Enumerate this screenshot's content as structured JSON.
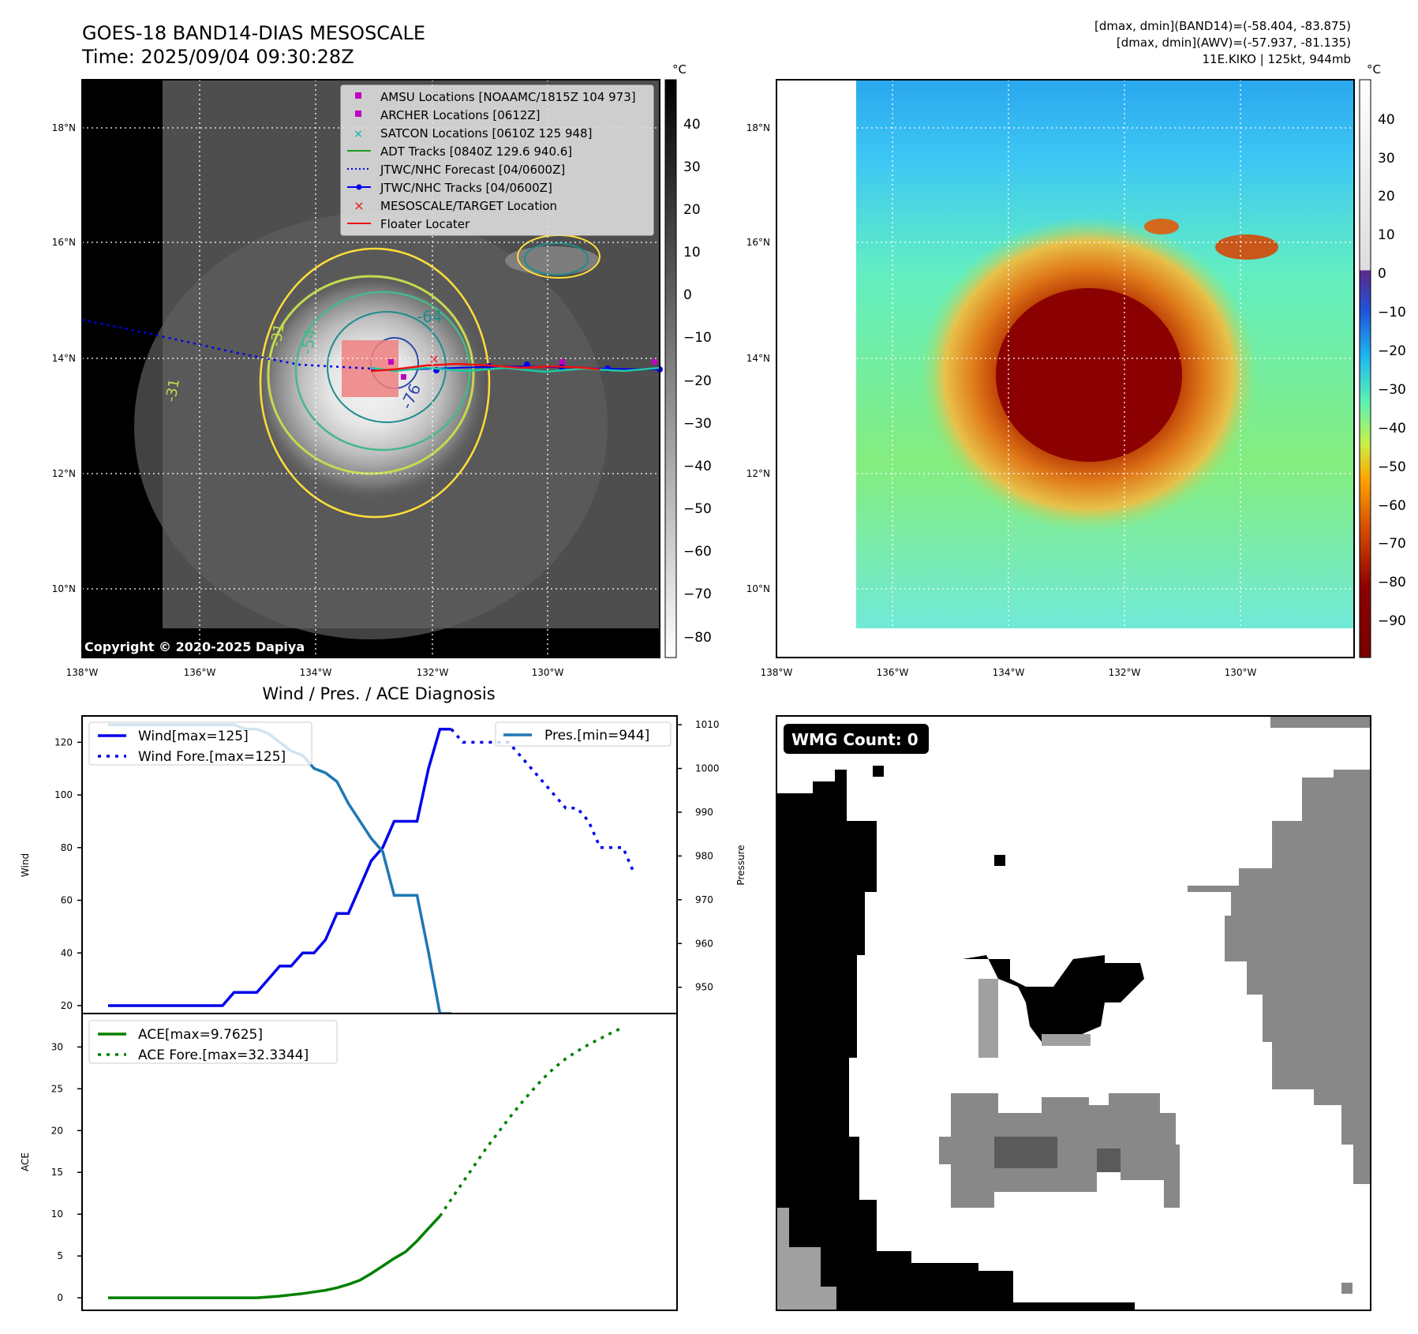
{
  "header": {
    "title": "GOES-18 BAND14-DIAS MESOSCALE",
    "time": "Time: 2025/09/04 09:30:28Z",
    "stats1": "[dmax, dmin](BAND14)=(-58.404, -83.875)",
    "stats2": "[dmax, dmin](AWV)=(-57.937, -81.135)",
    "storm": "11E.KIKO | 125kt, 944mb"
  },
  "map": {
    "lon_labels": [
      "138°W",
      "136°W",
      "134°W",
      "132°W",
      "130°W"
    ],
    "lat_labels": [
      "18°N",
      "16°N",
      "14°N",
      "12°N",
      "10°N"
    ],
    "copyright": "Copyright © 2020-2025 Dapiya",
    "contour_labels": [
      "-64",
      "-54",
      "-76",
      "-31",
      "-31"
    ],
    "legend": [
      "AMSU Locations [NOAAMC/1815Z 104 973]",
      "ARCHER Locations [0612Z]",
      "SATCON Locations [0610Z 125 948]",
      "ADT Tracks [0840Z 129.6 940.6]",
      "JTWC/NHC Forecast [04/0600Z]",
      "JTWC/NHC Tracks [04/0600Z]",
      "MESOSCALE/TARGET Location",
      "Floater Locater"
    ]
  },
  "colorbar_gray": {
    "unit": "°C",
    "ticks": [
      "40",
      "30",
      "20",
      "10",
      "0",
      "−10",
      "−20",
      "−30",
      "−40",
      "−50",
      "−60",
      "−70",
      "−80"
    ]
  },
  "colorbar_color": {
    "unit": "°C",
    "ticks": [
      "40",
      "30",
      "20",
      "10",
      "0",
      "−10",
      "−20",
      "−30",
      "−40",
      "−50",
      "−60",
      "−70",
      "−80",
      "−90"
    ]
  },
  "diag": {
    "title": "Wind / Pres. / ACE Diagnosis",
    "wind_axis_label": "Wind",
    "pres_axis_label": "Pressure",
    "ace_axis_label": "ACE",
    "legend_wind": "Wind[max=125]",
    "legend_wind_fore": "Wind Fore.[max=125]",
    "legend_pres": "Pres.[min=944]",
    "legend_ace": "ACE[max=9.7625]",
    "legend_ace_fore": "ACE Fore.[max=32.3344]"
  },
  "wmg": {
    "label": "WMG Count: 0"
  },
  "chart_data": [
    {
      "type": "line",
      "title": "Wind / Pres. / ACE Diagnosis",
      "ylabel": "Wind",
      "ylim": [
        17,
        130
      ],
      "y_ticks": [
        20,
        40,
        60,
        80,
        100,
        120
      ],
      "series": [
        {
          "name": "Wind[max=125]",
          "axis": "left",
          "color": "#0000ee",
          "style": "solid",
          "values": [
            20,
            20,
            20,
            20,
            20,
            20,
            20,
            20,
            20,
            20,
            20,
            25,
            25,
            25,
            30,
            35,
            35,
            40,
            40,
            45,
            55,
            55,
            65,
            75,
            80,
            90,
            90,
            90,
            110,
            125,
            125
          ]
        },
        {
          "name": "Wind Fore.[max=125]",
          "axis": "left",
          "color": "#0000ee",
          "style": "dotted",
          "start_index": 30,
          "values": [
            125,
            120,
            120,
            120,
            120,
            120,
            115,
            110,
            105,
            100,
            95,
            95,
            90,
            80,
            80,
            80,
            70
          ]
        },
        {
          "name": "Pres.[min=944]",
          "axis": "right",
          "color": "#1f77b4",
          "style": "solid",
          "values": [
            1010,
            1010,
            1010,
            1010,
            1010,
            1010,
            1010,
            1010,
            1010,
            1010,
            1010,
            1010,
            1009,
            1009,
            1008,
            1006,
            1004,
            1003,
            1000,
            999,
            997,
            992,
            988,
            984,
            981,
            971,
            971,
            971,
            958,
            944,
            944
          ]
        }
      ],
      "y2label": "Pressure",
      "y2lim": [
        944,
        1012
      ],
      "y2_ticks": [
        950,
        960,
        970,
        980,
        990,
        1000,
        1010
      ]
    },
    {
      "type": "line",
      "ylabel": "ACE",
      "ylim": [
        -1.5,
        34
      ],
      "y_ticks": [
        0,
        5,
        10,
        15,
        20,
        25,
        30
      ],
      "series": [
        {
          "name": "ACE[max=9.7625]",
          "color": "#008000",
          "style": "solid",
          "values": [
            0,
            0,
            0,
            0,
            0,
            0,
            0,
            0,
            0,
            0,
            0,
            0,
            0,
            0,
            0.1,
            0.2,
            0.35,
            0.5,
            0.7,
            0.9,
            1.2,
            1.6,
            2.1,
            2.9,
            3.8,
            4.7,
            5.5,
            6.8,
            8.3,
            9.7625
          ]
        },
        {
          "name": "ACE Fore.[max=32.3344]",
          "color": "#008000",
          "style": "dotted",
          "start_index": 29,
          "values": [
            9.7625,
            11.8,
            13.8,
            15.8,
            17.8,
            19.6,
            21.4,
            23.1,
            24.7,
            26.2,
            27.5,
            28.6,
            29.5,
            30.3,
            31.0,
            31.7,
            32.3344
          ]
        }
      ]
    }
  ]
}
